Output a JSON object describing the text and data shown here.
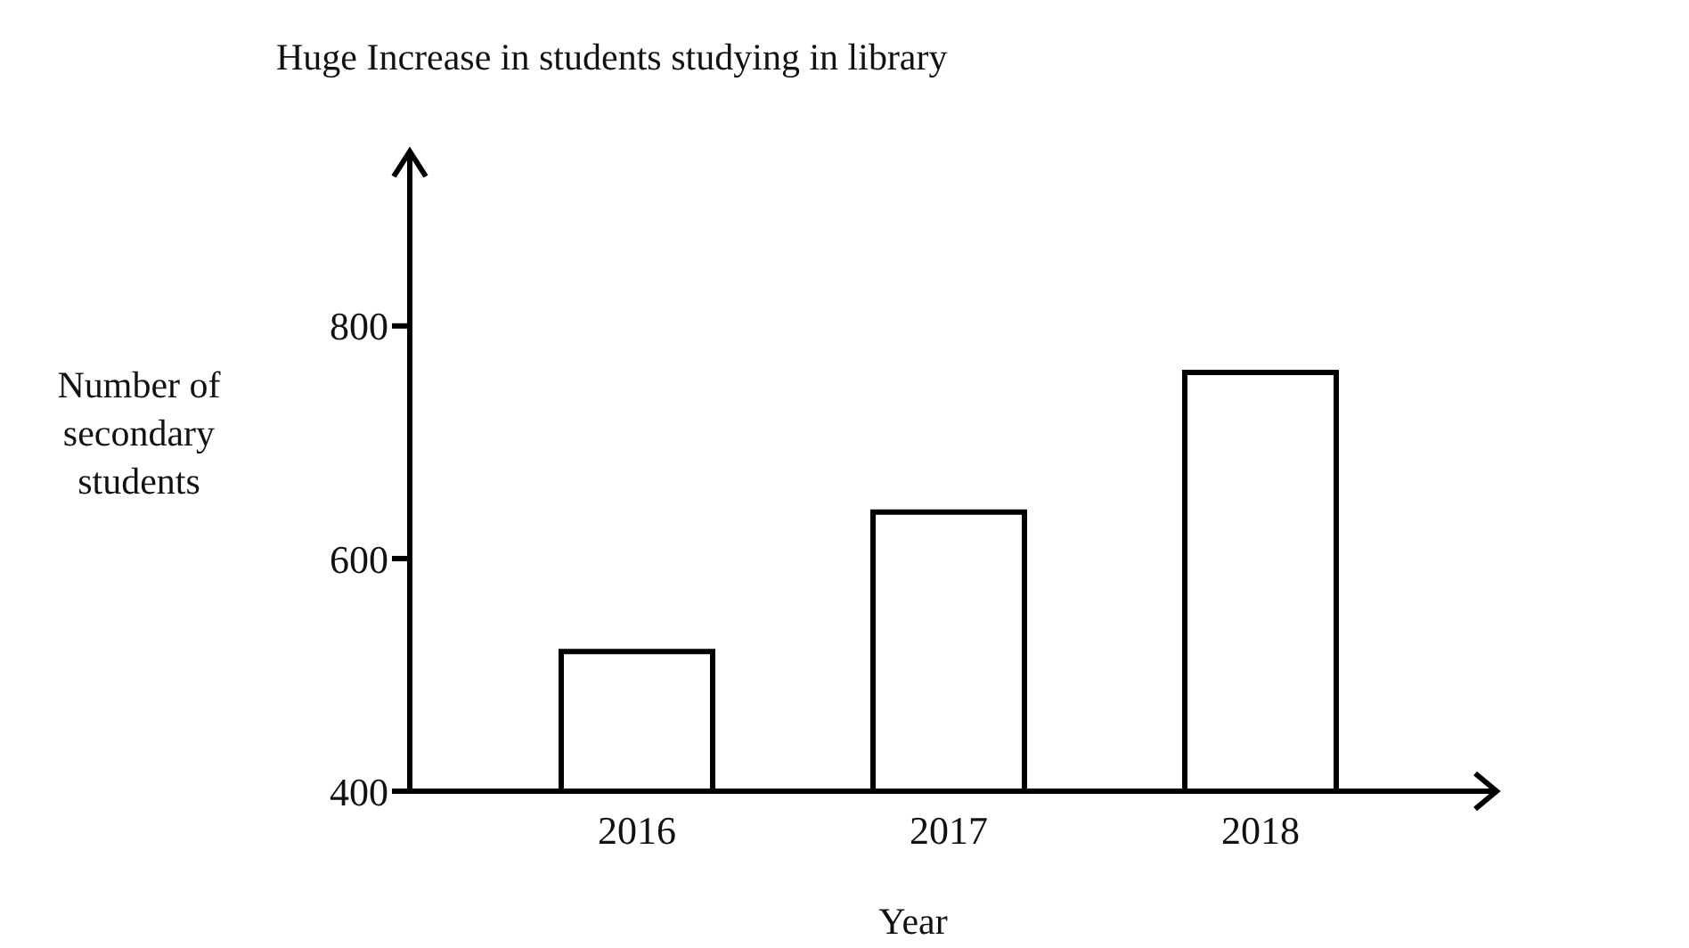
{
  "chart_data": {
    "type": "bar",
    "title": "Huge Increase in students studying in library",
    "xlabel": "Year",
    "ylabel": "Number of secondary students",
    "categories": [
      "2016",
      "2017",
      "2018"
    ],
    "values": [
      520,
      640,
      760
    ],
    "color": "#ffffff",
    "ylim": [
      400,
      950
    ],
    "yticks": [
      400,
      600,
      800
    ],
    "grid": false,
    "legend": false
  }
}
